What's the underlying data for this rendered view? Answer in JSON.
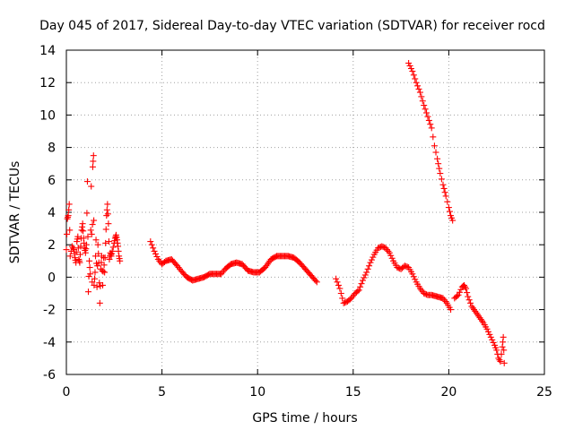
{
  "chart_data": {
    "type": "scatter",
    "title": "Day 045 of 2017, Sidereal Day-to-day VTEC variation (SDTVAR) for receiver rocd",
    "xlabel": "GPS time / hours",
    "ylabel": "SDTVAR / TECUs",
    "xlim": [
      0,
      25
    ],
    "ylim": [
      -6,
      14
    ],
    "xticks": [
      0,
      5,
      10,
      15,
      20,
      25
    ],
    "yticks": [
      -6,
      -4,
      -2,
      0,
      2,
      4,
      6,
      8,
      10,
      12,
      14
    ],
    "grid": true,
    "marker": "+",
    "color": "#ff0000",
    "series": [
      {
        "name": "seg1",
        "points": [
          [
            0.0,
            1.7
          ],
          [
            0.05,
            3.6
          ],
          [
            0.1,
            3.8
          ],
          [
            0.15,
            4.5
          ],
          [
            0.2,
            1.3
          ],
          [
            0.3,
            1.9
          ],
          [
            0.4,
            1.7
          ],
          [
            0.45,
            1.2
          ],
          [
            0.5,
            0.9
          ],
          [
            0.55,
            2.2
          ],
          [
            0.6,
            2.5
          ],
          [
            0.65,
            1.1
          ],
          [
            0.7,
            0.9
          ],
          [
            0.75,
            1.9
          ],
          [
            0.8,
            2.9
          ],
          [
            0.85,
            3.3
          ],
          [
            0.9,
            2.4
          ],
          [
            0.95,
            1.8
          ],
          [
            1.0,
            1.5
          ],
          [
            1.05,
            2.0
          ],
          [
            1.1,
            5.9
          ],
          [
            1.15,
            -0.9
          ],
          [
            1.2,
            1.0
          ],
          [
            1.25,
            0.2
          ],
          [
            1.3,
            5.6
          ],
          [
            1.35,
            -0.3
          ],
          [
            1.38,
            6.8
          ],
          [
            1.42,
            7.5
          ],
          [
            1.45,
            -0.5
          ],
          [
            1.5,
            0.3
          ],
          [
            1.55,
            2.3
          ],
          [
            1.6,
            -0.6
          ],
          [
            1.65,
            2.0
          ],
          [
            1.7,
            0.9
          ],
          [
            1.75,
            -1.6
          ],
          [
            1.8,
            0.5
          ],
          [
            1.85,
            1.3
          ],
          [
            1.9,
            -0.5
          ],
          [
            1.95,
            1.2
          ],
          [
            2.0,
            0.3
          ],
          [
            2.05,
            2.1
          ],
          [
            2.1,
            3.8
          ],
          [
            2.15,
            4.5
          ],
          [
            2.2,
            3.3
          ],
          [
            2.25,
            1.1
          ],
          [
            2.3,
            1.5
          ],
          [
            2.35,
            1.3
          ],
          [
            2.4,
            1.6
          ],
          [
            2.5,
            2.1
          ],
          [
            2.55,
            2.4
          ],
          [
            2.6,
            2.6
          ],
          [
            2.65,
            2.3
          ],
          [
            2.7,
            1.9
          ],
          [
            2.75,
            1.3
          ],
          [
            2.8,
            1.0
          ]
        ]
      },
      {
        "name": "seg2",
        "points": [
          [
            4.4,
            2.2
          ],
          [
            4.6,
            1.6
          ],
          [
            4.8,
            1.1
          ],
          [
            5.0,
            0.8
          ],
          [
            5.2,
            1.0
          ],
          [
            5.5,
            1.1
          ],
          [
            5.8,
            0.7
          ],
          [
            6.0,
            0.4
          ],
          [
            6.3,
            0.0
          ],
          [
            6.6,
            -0.2
          ],
          [
            6.9,
            -0.1
          ],
          [
            7.2,
            0.0
          ],
          [
            7.5,
            0.2
          ],
          [
            7.8,
            0.2
          ],
          [
            8.1,
            0.2
          ],
          [
            8.3,
            0.5
          ],
          [
            8.6,
            0.8
          ],
          [
            8.9,
            0.9
          ],
          [
            9.2,
            0.8
          ],
          [
            9.5,
            0.4
          ],
          [
            9.8,
            0.3
          ],
          [
            10.1,
            0.3
          ],
          [
            10.4,
            0.6
          ],
          [
            10.7,
            1.1
          ],
          [
            11.0,
            1.3
          ],
          [
            11.3,
            1.3
          ],
          [
            11.6,
            1.3
          ],
          [
            11.9,
            1.2
          ],
          [
            12.2,
            0.9
          ],
          [
            12.5,
            0.5
          ],
          [
            12.8,
            0.1
          ],
          [
            13.1,
            -0.3
          ]
        ]
      },
      {
        "name": "seg3",
        "points": [
          [
            14.1,
            -0.1
          ],
          [
            14.3,
            -0.7
          ],
          [
            14.5,
            -1.6
          ],
          [
            14.7,
            -1.5
          ],
          [
            14.9,
            -1.3
          ],
          [
            15.1,
            -1.0
          ],
          [
            15.3,
            -0.8
          ],
          [
            15.5,
            -0.2
          ],
          [
            15.7,
            0.3
          ],
          [
            15.9,
            0.9
          ],
          [
            16.1,
            1.4
          ],
          [
            16.3,
            1.8
          ],
          [
            16.5,
            1.9
          ],
          [
            16.7,
            1.8
          ],
          [
            16.9,
            1.5
          ],
          [
            17.1,
            1.0
          ],
          [
            17.3,
            0.6
          ],
          [
            17.5,
            0.5
          ],
          [
            17.7,
            0.7
          ],
          [
            17.9,
            0.6
          ],
          [
            18.1,
            0.2
          ],
          [
            18.3,
            -0.3
          ],
          [
            18.5,
            -0.7
          ],
          [
            18.7,
            -1.0
          ],
          [
            18.9,
            -1.1
          ],
          [
            19.1,
            -1.1
          ],
          [
            19.4,
            -1.2
          ],
          [
            19.7,
            -1.3
          ],
          [
            19.9,
            -1.6
          ],
          [
            20.1,
            -2.0
          ]
        ]
      },
      {
        "name": "seg4",
        "points": [
          [
            17.9,
            13.2
          ],
          [
            18.1,
            12.7
          ],
          [
            18.3,
            12.0
          ],
          [
            18.5,
            11.4
          ],
          [
            18.7,
            10.6
          ],
          [
            18.9,
            9.9
          ],
          [
            19.1,
            9.2
          ],
          [
            19.25,
            8.1
          ],
          [
            19.4,
            7.3
          ],
          [
            19.55,
            6.4
          ],
          [
            19.7,
            5.7
          ],
          [
            19.85,
            5.0
          ],
          [
            20.0,
            4.3
          ],
          [
            20.1,
            3.8
          ],
          [
            20.2,
            3.5
          ]
        ]
      },
      {
        "name": "seg5",
        "points": [
          [
            20.3,
            -1.3
          ],
          [
            20.5,
            -1.1
          ],
          [
            20.7,
            -0.6
          ],
          [
            20.8,
            -0.5
          ],
          [
            20.9,
            -0.7
          ],
          [
            21.0,
            -1.2
          ],
          [
            21.2,
            -1.8
          ],
          [
            21.5,
            -2.3
          ],
          [
            21.8,
            -2.8
          ],
          [
            22.0,
            -3.2
          ],
          [
            22.2,
            -3.7
          ],
          [
            22.4,
            -4.2
          ],
          [
            22.5,
            -4.5
          ],
          [
            22.6,
            -5.0
          ],
          [
            22.7,
            -5.2
          ],
          [
            22.8,
            -4.3
          ],
          [
            22.85,
            -3.7
          ],
          [
            22.9,
            -5.3
          ]
        ]
      }
    ]
  }
}
